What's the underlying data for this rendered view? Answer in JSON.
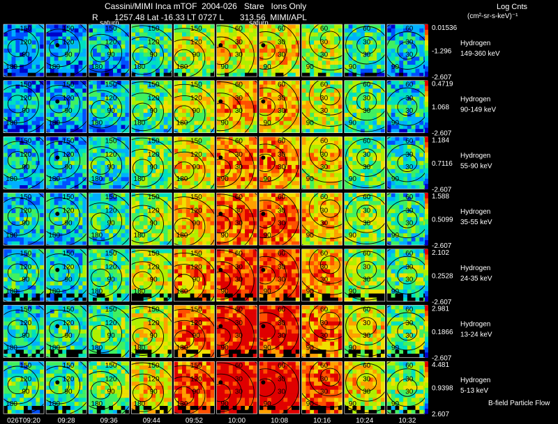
{
  "header": {
    "title": "Cassini/MIMI Inca mTOF  2004-026   Stare   Ions Only",
    "info": "R       1257.48 Lat -16.33 LT 0727 L       313.56  MIMI/APL",
    "units_title": "Log Cnts",
    "units_sub": "(cm²-sr-s-keV)⁻¹",
    "footnote": "B-field Particle Flow",
    "saturn_label": "saturn"
  },
  "colors": {
    "scale": [
      "#0000c8",
      "#0050ff",
      "#00b0ff",
      "#00e0c0",
      "#40f060",
      "#b0f000",
      "#f0e000",
      "#ffa000",
      "#ff5000",
      "#e00000"
    ],
    "background": "#000000",
    "contour": "#000000"
  },
  "chart_data": {
    "type": "heatmap",
    "title": "Cassini/MIMI Inca mTOF  2004-026   Stare   Ions Only",
    "x_ticks": [
      "026T09:20",
      "09:28",
      "09:36",
      "09:44",
      "09:52",
      "10:00",
      "10:08",
      "10:16",
      "10:24",
      "10:32"
    ],
    "contour_labels": [
      "30",
      "60",
      "90",
      "120",
      "150",
      "180"
    ],
    "rows": [
      {
        "species": "Hydrogen",
        "energy": "149-360 keV",
        "max": "0.01536",
        "mid": "-1.296",
        "min": "-2.607"
      },
      {
        "species": "Hydrogen",
        "energy": "90-149 keV",
        "max": "0.4719",
        "mid": "1.068",
        "min": "-2.607"
      },
      {
        "species": "Hydrogen",
        "energy": "55-90 keV",
        "max": "1.184",
        "mid": "0.7116",
        "min": "-2.607"
      },
      {
        "species": "Hydrogen",
        "energy": "35-55 keV",
        "max": "1.588",
        "mid": "0.5099",
        "min": "-2.607"
      },
      {
        "species": "Hydrogen",
        "energy": "24-35 keV",
        "max": "2.102",
        "mid": "0.2528",
        "min": "-2.607"
      },
      {
        "species": "Hydrogen",
        "energy": "13-24 keV",
        "max": "2.981",
        "mid": "0.1866",
        "min": "-2.607"
      },
      {
        "species": "Hydrogen",
        "energy": "5-13 keV",
        "max": "4.481",
        "mid": "0.9398",
        "min": "2.607"
      }
    ]
  }
}
